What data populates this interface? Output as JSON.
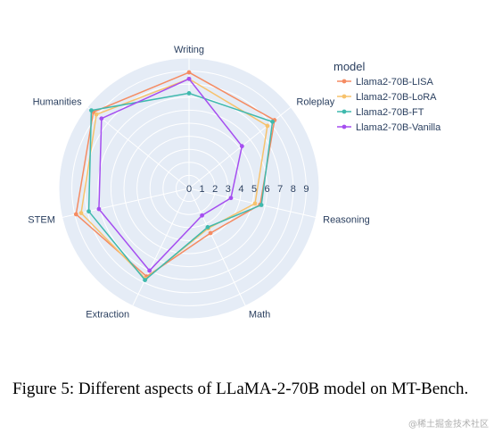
{
  "chart_data": {
    "type": "radar",
    "legend_title": "model",
    "legend_position": "top-right",
    "axes": [
      "Writing",
      "Roleplay",
      "Reasoning",
      "Math",
      "Extraction",
      "STEM",
      "Humanities"
    ],
    "radial_ticks": [
      "0",
      "1",
      "2",
      "3",
      "4",
      "5",
      "6",
      "7",
      "8",
      "9"
    ],
    "radial_range": [
      0,
      10
    ],
    "grid": true,
    "series": [
      {
        "name": "Llama2-70B-LISA",
        "color": "#f58b62",
        "values": [
          8.9,
          8.4,
          5.6,
          3.8,
          7.5,
          8.9,
          9.4
        ]
      },
      {
        "name": "Llama2-70B-LoRA",
        "color": "#f7c26c",
        "values": [
          8.4,
          7.7,
          5.2,
          3.4,
          7.7,
          8.5,
          9.1
        ]
      },
      {
        "name": "Llama2-70B-FT",
        "color": "#3fb9ad",
        "values": [
          7.3,
          8.2,
          5.7,
          3.3,
          7.8,
          7.9,
          9.6
        ]
      },
      {
        "name": "Llama2-70B-Vanilla",
        "color": "#a54ef0",
        "values": [
          8.4,
          5.2,
          3.3,
          2.3,
          7.0,
          7.1,
          8.6
        ]
      }
    ]
  },
  "caption": "Figure 5: Different aspects of LLaMA-2-70B model on MT-Bench.",
  "watermark": "@稀土掘金技术社区"
}
